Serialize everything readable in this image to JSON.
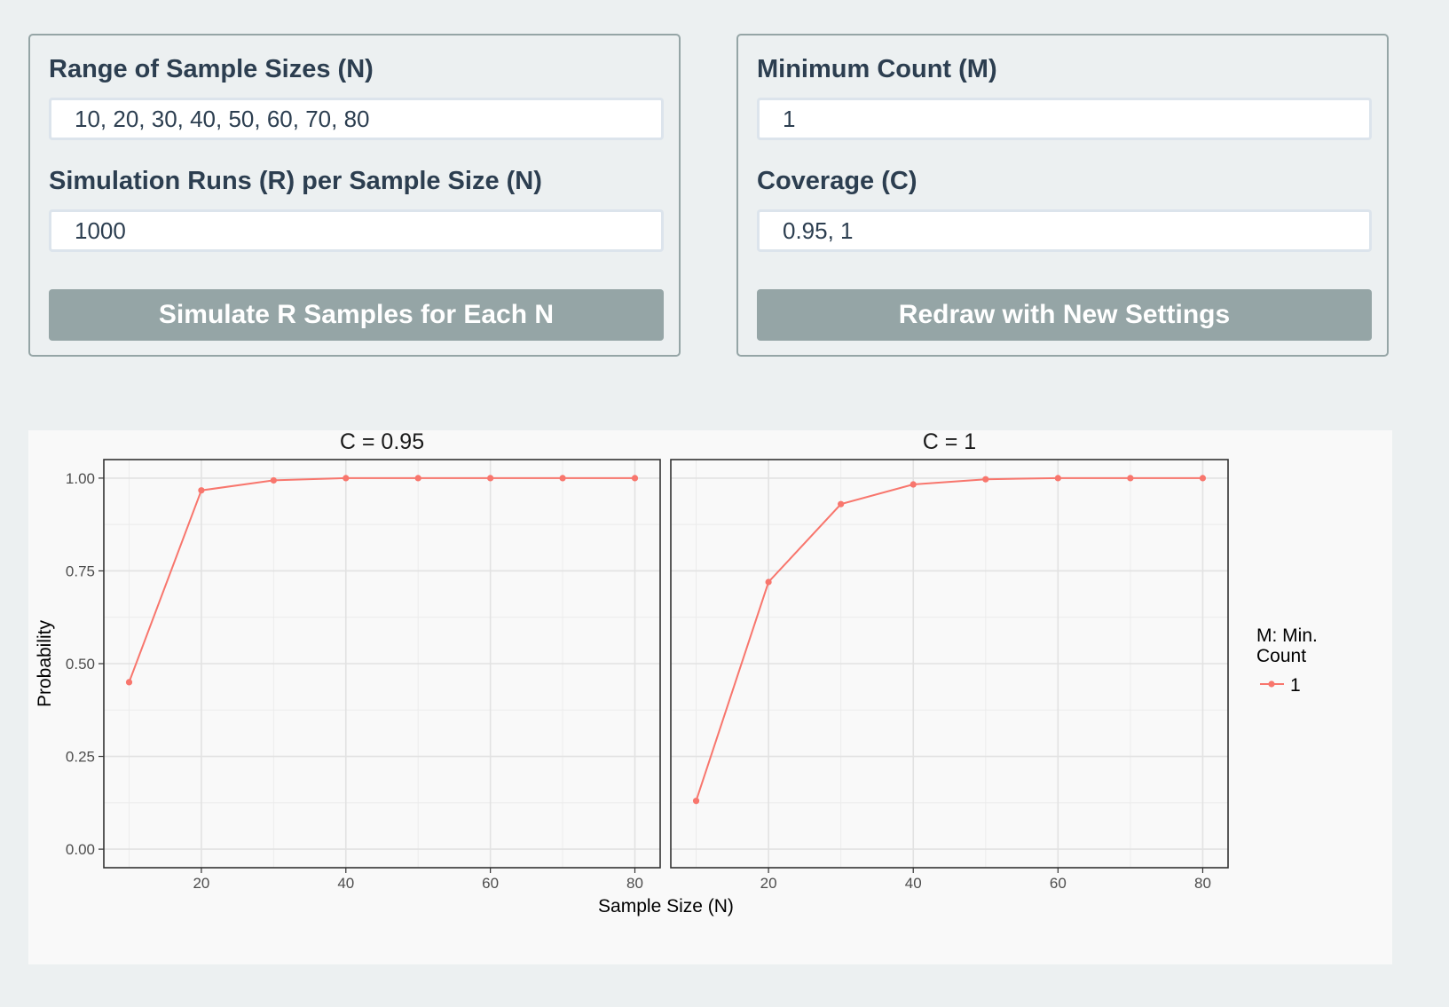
{
  "controls": {
    "sample_sizes": {
      "label": "Range of Sample Sizes (N)",
      "value": "10, 20, 30, 40, 50, 60, 70, 80"
    },
    "runs": {
      "label": "Simulation Runs (R) per Sample Size (N)",
      "value": "1000"
    },
    "simulate_button": "Simulate R Samples for Each N",
    "min_count": {
      "label": "Minimum Count (M)",
      "value": "1"
    },
    "coverage": {
      "label": "Coverage (C)",
      "value": "0.95, 1"
    },
    "redraw_button": "Redraw with New Settings"
  },
  "chart_data": {
    "type": "line",
    "facets": [
      {
        "title": "C = 0.95",
        "series": [
          {
            "name": "1",
            "x": [
              10,
              20,
              30,
              40,
              50,
              60,
              70,
              80
            ],
            "y": [
              0.45,
              0.967,
              0.994,
              1.0,
              1.0,
              1.0,
              1.0,
              1.0
            ]
          }
        ]
      },
      {
        "title": "C = 1",
        "series": [
          {
            "name": "1",
            "x": [
              10,
              20,
              30,
              40,
              50,
              60,
              70,
              80
            ],
            "y": [
              0.13,
              0.72,
              0.93,
              0.983,
              0.997,
              1.0,
              1.0,
              1.0
            ]
          }
        ]
      }
    ],
    "xlabel": "Sample Size (N)",
    "ylabel": "Probability",
    "x_ticks": [
      "20",
      "40",
      "60",
      "80"
    ],
    "y_ticks": [
      "0.00",
      "0.25",
      "0.50",
      "0.75",
      "1.00"
    ],
    "xlim": [
      6.5,
      83.5
    ],
    "ylim": [
      -0.05,
      1.05
    ],
    "grid": true,
    "legend": {
      "title": "M: Min. Count",
      "title_lines": [
        "M: Min.",
        "Count"
      ],
      "entries": [
        "1"
      ],
      "position": "right"
    },
    "series_color": "#f8766d"
  }
}
